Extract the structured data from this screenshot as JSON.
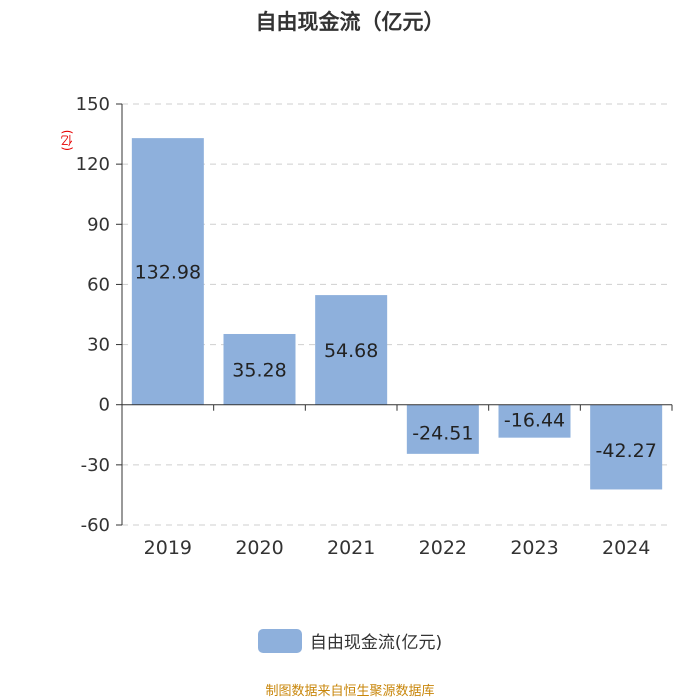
{
  "title": "自由现金流（亿元）",
  "chart_data": {
    "type": "bar",
    "categories": [
      "2019",
      "2020",
      "2021",
      "2022",
      "2023",
      "2024"
    ],
    "series": [
      {
        "name": "自由现金流(亿元)",
        "values": [
          132.98,
          35.28,
          54.68,
          -24.51,
          -16.44,
          -42.27
        ]
      }
    ],
    "value_labels": [
      "132.98",
      "35.28",
      "54.68",
      "-24.51",
      "-16.44",
      "-42.27"
    ],
    "ylim": [
      -60,
      150
    ],
    "yticks": [
      -60,
      -30,
      0,
      30,
      60,
      90,
      120,
      150
    ],
    "ylabel": "(亿)",
    "grid": true,
    "legend_position": "bottom",
    "bar_color": "#8eb0dc"
  },
  "legend": {
    "label": "自由现金流(亿元)"
  },
  "source": "制图数据来自恒生聚源数据库"
}
